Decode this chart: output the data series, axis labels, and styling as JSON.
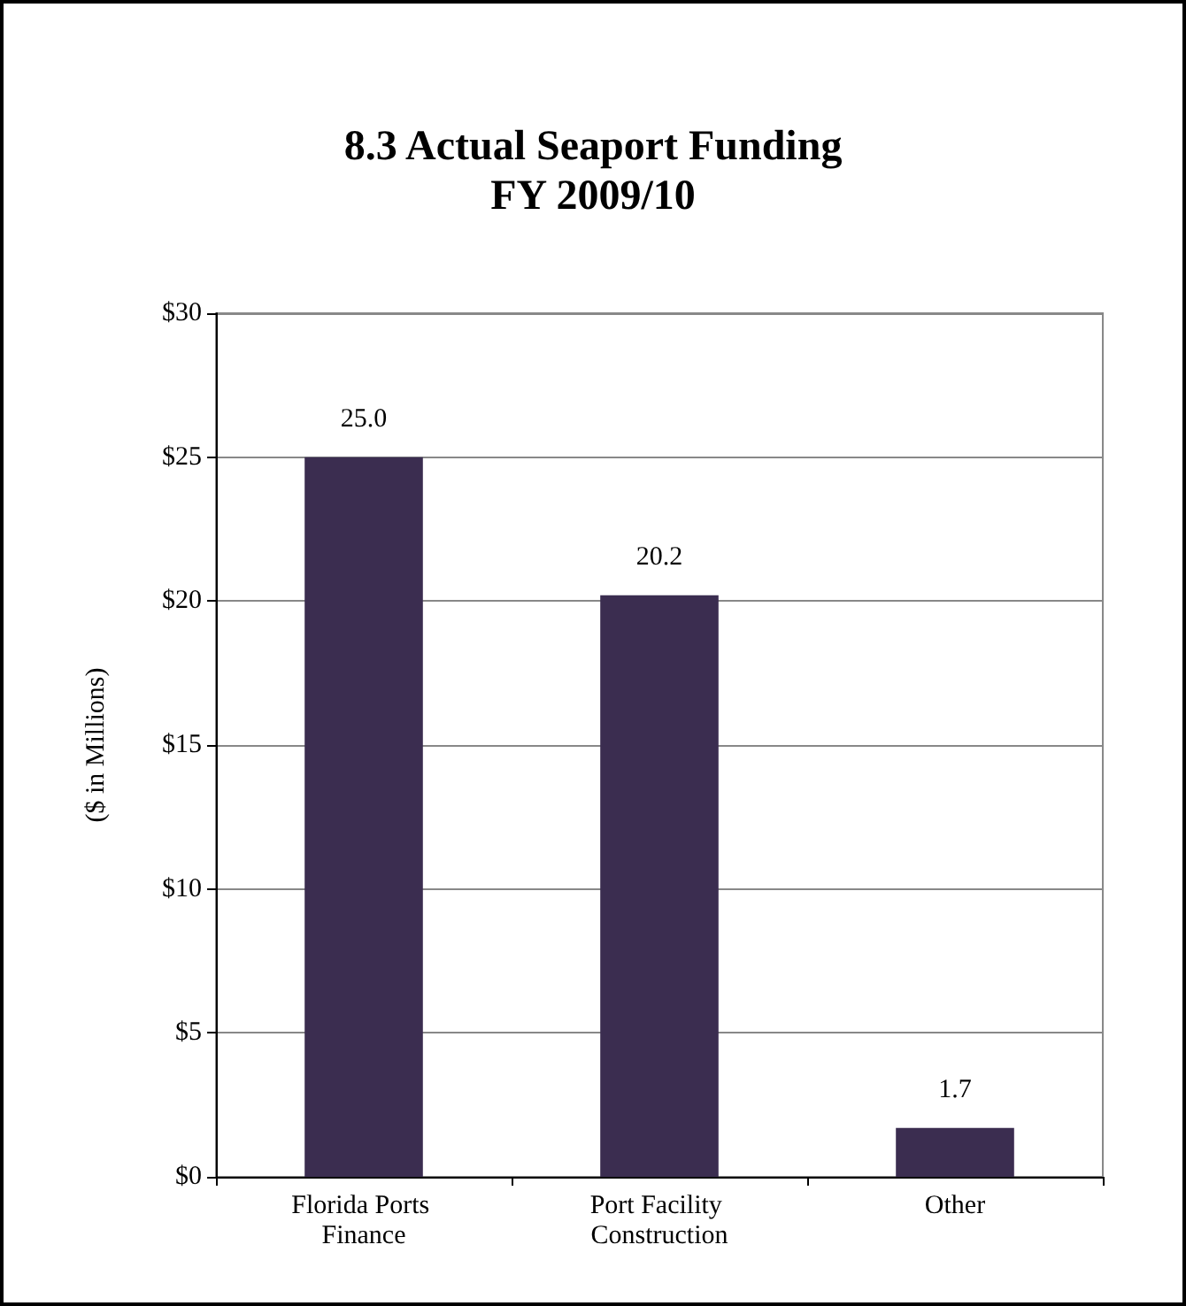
{
  "chart_data": {
    "type": "bar",
    "title": "8.3 Actual Seaport Funding\nFY 2009/10",
    "ylabel": "($ in Millions)",
    "categories": [
      "Florida Ports Finance",
      "Port Facility Construction",
      "Other"
    ],
    "values": [
      25.0,
      20.2,
      1.7
    ],
    "value_labels": [
      "25.0",
      "20.2",
      "1.7"
    ],
    "color": "#3b2d50",
    "ylim": [
      0,
      30
    ],
    "yticks": [
      {
        "value": 0,
        "label": "$0"
      },
      {
        "value": 5,
        "label": "$5"
      },
      {
        "value": 10,
        "label": "$10"
      },
      {
        "value": 15,
        "label": "$15"
      },
      {
        "value": 20,
        "label": "$20"
      },
      {
        "value": 25,
        "label": "$25"
      },
      {
        "value": 30,
        "label": "$30"
      }
    ],
    "grid": "y"
  }
}
